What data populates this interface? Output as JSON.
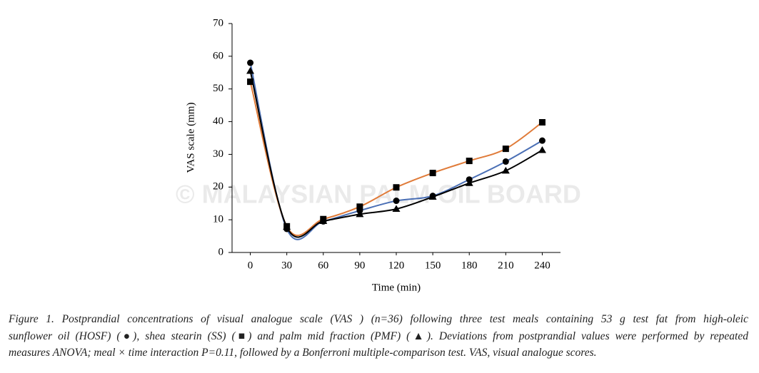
{
  "chart_data": {
    "type": "line",
    "x_label": "Time (min)",
    "y_label": "VAS scale (mm)",
    "x": [
      0,
      30,
      60,
      90,
      120,
      150,
      180,
      210,
      240
    ],
    "xlim": [
      -15,
      255
    ],
    "xticks": [
      0,
      30,
      60,
      90,
      120,
      150,
      180,
      210,
      240
    ],
    "ylim": [
      0,
      70
    ],
    "yticks": [
      0,
      10,
      20,
      30,
      40,
      50,
      60,
      70
    ],
    "series": [
      {
        "color": "#4a6fb5",
        "marker": "circle",
        "values": [
          58,
          7.2,
          9.5,
          12.8,
          15.8,
          17.3,
          22.3,
          27.8,
          34.2
        ]
      },
      {
        "color": "#e07b39",
        "marker": "square",
        "values": [
          52.2,
          8,
          10.2,
          14,
          19.9,
          24.3,
          28,
          31.7,
          39.8
        ]
      },
      {
        "color": "#000000",
        "marker": "triangle",
        "values": [
          55.5,
          7.8,
          9.6,
          11.7,
          13.3,
          17,
          21.2,
          25,
          31.3
        ]
      }
    ]
  },
  "watermark": "© MALAYSIAN PALM OIL BOARD",
  "caption": [
    "Figure 1. Postprandial concentrations of visual analogue scale (VAS ) (n=36) following three test meals containing 53 g test fat from high-oleic",
    "sunflower oil (HOSF) (●), shea stearin (SS) (■) and palm mid fraction (PMF) (▲). Deviations from postprandial values were performed by repeated",
    "measures ANOVA; meal × time interaction P=0.11, followed by a Bonferroni multiple-comparison test. VAS, visual analogue scores."
  ]
}
